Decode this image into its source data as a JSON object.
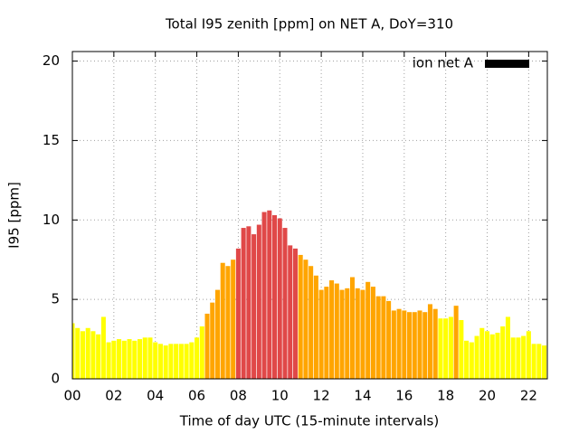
{
  "chart_data": {
    "type": "bar",
    "title": "Total I95 zenith [ppm] on NET A, DoY=310",
    "x_label": "Time of day UTC (15-minute intervals)",
    "y_label": "I95 [ppm]",
    "xlim": [
      0,
      22.9
    ],
    "ylim": [
      0,
      20.6
    ],
    "xticks": [
      {
        "value": 0,
        "label": "00"
      },
      {
        "value": 2,
        "label": "02"
      },
      {
        "value": 4,
        "label": "04"
      },
      {
        "value": 6,
        "label": "06"
      },
      {
        "value": 8,
        "label": "08"
      },
      {
        "value": 10,
        "label": "10"
      },
      {
        "value": 12,
        "label": "12"
      },
      {
        "value": 14,
        "label": "14"
      },
      {
        "value": 16,
        "label": "16"
      },
      {
        "value": 18,
        "label": "18"
      },
      {
        "value": 20,
        "label": "20"
      },
      {
        "value": 22,
        "label": "22"
      }
    ],
    "yticks": [
      0,
      5,
      10,
      15,
      20
    ],
    "grid": true,
    "legend": "upper right",
    "x": [
      0,
      0.25,
      0.5,
      0.75,
      1,
      1.25,
      1.5,
      1.75,
      2,
      2.25,
      2.5,
      2.75,
      3,
      3.25,
      3.5,
      3.75,
      4,
      4.25,
      4.5,
      4.75,
      5,
      5.25,
      5.5,
      5.75,
      6,
      6.25,
      6.5,
      6.75,
      7,
      7.25,
      7.5,
      7.75,
      8,
      8.25,
      8.5,
      8.75,
      9,
      9.25,
      9.5,
      9.75,
      10,
      10.25,
      10.5,
      10.75,
      11,
      11.25,
      11.5,
      11.75,
      12,
      12.25,
      12.5,
      12.75,
      13,
      13.25,
      13.5,
      13.75,
      14,
      14.25,
      14.5,
      14.75,
      15,
      15.25,
      15.5,
      15.75,
      16,
      16.25,
      16.5,
      16.75,
      17,
      17.25,
      17.5,
      17.75,
      18,
      18.25,
      18.5,
      18.75,
      19,
      19.25,
      19.5,
      19.75,
      20,
      20.25,
      20.5,
      20.75,
      21,
      21.25,
      21.5,
      21.75,
      22,
      22.25,
      22.5,
      22.75
    ],
    "series": [
      {
        "name": "ion net A",
        "color": "#000000",
        "values": [
          3.5,
          3.2,
          3.0,
          3.2,
          3.0,
          2.8,
          3.9,
          2.3,
          2.4,
          2.5,
          2.4,
          2.5,
          2.4,
          2.5,
          2.6,
          2.6,
          2.3,
          2.2,
          2.1,
          2.2,
          2.2,
          2.2,
          2.2,
          2.3,
          2.6,
          3.3,
          4.1,
          4.8,
          5.6,
          7.3,
          7.1,
          7.5,
          8.2,
          9.5,
          9.6,
          9.1,
          9.7,
          10.5,
          10.6,
          10.3,
          10.1,
          9.5,
          8.4,
          8.2,
          7.8,
          7.5,
          7.1,
          6.5,
          5.6,
          5.8,
          6.2,
          6.0,
          5.6,
          5.7,
          6.4,
          5.7,
          5.6,
          6.1,
          5.8,
          5.2,
          5.2,
          4.9,
          4.3,
          4.4,
          4.3,
          4.2,
          4.2,
          4.3,
          4.2,
          4.7,
          4.4,
          3.8,
          3.8,
          3.9,
          4.6,
          3.7,
          2.4,
          2.3,
          2.7,
          3.2,
          3.0,
          2.8,
          2.9,
          3.3,
          3.9,
          2.6,
          2.6,
          2.7,
          3.0,
          2.2,
          2.2,
          2.1
        ],
        "colors": [
          "#ffff00",
          "#ffff00",
          "#ffff00",
          "#ffff00",
          "#ffff00",
          "#ffff00",
          "#ffff00",
          "#ffff00",
          "#ffff00",
          "#ffff00",
          "#ffff00",
          "#ffff00",
          "#ffff00",
          "#ffff00",
          "#ffff00",
          "#ffff00",
          "#ffff00",
          "#ffff00",
          "#ffff00",
          "#ffff00",
          "#ffff00",
          "#ffff00",
          "#ffff00",
          "#ffff00",
          "#ffff00",
          "#ffff00",
          "#ffa500",
          "#ffa500",
          "#ffa500",
          "#ffa500",
          "#ffa500",
          "#ffa500",
          "#e04848",
          "#e04848",
          "#e04848",
          "#e04848",
          "#e04848",
          "#e04848",
          "#e04848",
          "#e04848",
          "#e04848",
          "#e04848",
          "#e04848",
          "#e04848",
          "#ffa500",
          "#ffa500",
          "#ffa500",
          "#ffa500",
          "#ffa500",
          "#ffa500",
          "#ffa500",
          "#ffa500",
          "#ffa500",
          "#ffa500",
          "#ffa500",
          "#ffa500",
          "#ffa500",
          "#ffa500",
          "#ffa500",
          "#ffa500",
          "#ffa500",
          "#ffa500",
          "#ffa500",
          "#ffa500",
          "#ffa500",
          "#ffa500",
          "#ffa500",
          "#ffa500",
          "#ffa500",
          "#ffa500",
          "#ffa500",
          "#ffff00",
          "#ffff00",
          "#ffff00",
          "#ffa500",
          "#ffff00",
          "#ffff00",
          "#ffff00",
          "#ffff00",
          "#ffff00",
          "#ffff00",
          "#ffff00",
          "#ffff00",
          "#ffff00",
          "#ffff00",
          "#ffff00",
          "#ffff00",
          "#ffff00",
          "#ffff00",
          "#ffff00",
          "#ffff00",
          "#ffff00"
        ]
      }
    ]
  }
}
